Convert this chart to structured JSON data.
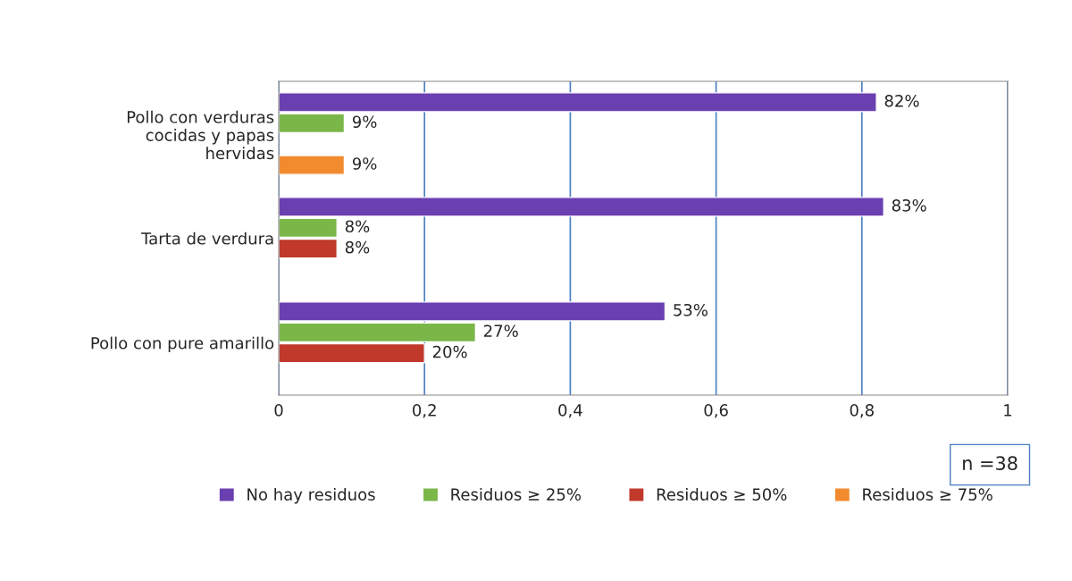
{
  "chart_data": {
    "type": "bar",
    "orientation": "horizontal",
    "categories": [
      "Pollo con verduras\ncocidas y papas\nhervidas",
      "Tarta de verdura",
      "Pollo con pure amarillo"
    ],
    "series": [
      {
        "name": "No hay residuos",
        "color": "#6a3fb0",
        "values": [
          0.82,
          0.83,
          0.53
        ],
        "value_labels": [
          "82%",
          "83%",
          "53%"
        ]
      },
      {
        "name": "Residuos ≥ 25%",
        "color": "#7ab648",
        "values": [
          0.09,
          0.08,
          0.27
        ],
        "value_labels": [
          "9%",
          "8%",
          "27%"
        ]
      },
      {
        "name": "Residuos ≥ 50%",
        "color": "#c0392b",
        "values": [
          null,
          0.08,
          0.2
        ],
        "value_labels": [
          null,
          "8%",
          "20%"
        ]
      },
      {
        "name": "Residuos ≥ 75%",
        "color": "#f28a2e",
        "values": [
          0.09,
          null,
          null
        ],
        "value_labels": [
          "9%",
          null,
          null
        ]
      }
    ],
    "xlim": [
      0,
      1
    ],
    "xticks": [
      0,
      {
        "value": 0.2,
        "label": "0,2"
      },
      {
        "value": 0.4,
        "label": "0,4"
      },
      {
        "value": 0.6,
        "label": "0,6"
      },
      {
        "value": 0.8,
        "label": "0,8"
      },
      1
    ],
    "grid": "x",
    "legend": "bottom",
    "annotations": [
      "n =38"
    ]
  }
}
